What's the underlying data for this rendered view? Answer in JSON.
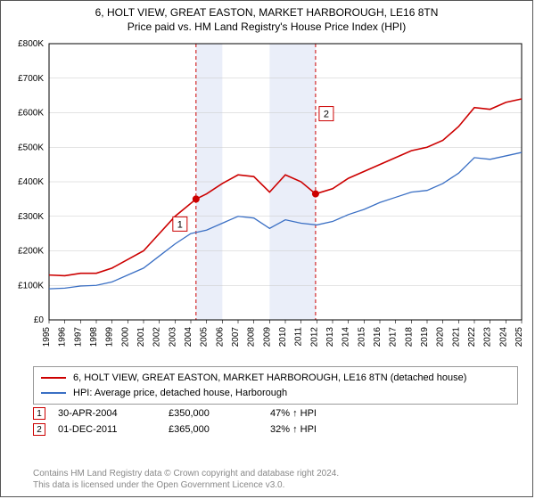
{
  "title_line1": "6, HOLT VIEW, GREAT EASTON, MARKET HARBOROUGH, LE16 8TN",
  "title_line2": "Price paid vs. HM Land Registry's House Price Index (HPI)",
  "chart": {
    "type": "line",
    "background_color": "#ffffff",
    "grid_color": "#c8c8c8",
    "axis_color": "#000000",
    "x_ticks": [
      "1995",
      "1996",
      "1997",
      "1998",
      "1999",
      "2000",
      "2001",
      "2002",
      "2003",
      "2004",
      "2005",
      "2006",
      "2007",
      "2008",
      "2009",
      "2010",
      "2011",
      "2012",
      "2013",
      "2014",
      "2015",
      "2016",
      "2017",
      "2018",
      "2019",
      "2020",
      "2021",
      "2022",
      "2023",
      "2024",
      "2025"
    ],
    "x_min": 1995,
    "x_max": 2025,
    "y_ticks": [
      "£0",
      "£100K",
      "£200K",
      "£300K",
      "£400K",
      "£500K",
      "£600K",
      "£700K",
      "£800K"
    ],
    "y_min": 0,
    "y_max": 800,
    "tick_fontsize": 10,
    "shaded_bands": [
      {
        "x_start": 2004.33,
        "x_end": 2006.0,
        "fill": "#eaeef9"
      },
      {
        "x_start": 2009.0,
        "x_end": 2011.92,
        "fill": "#eaeef9"
      }
    ],
    "vlines": [
      {
        "x": 2004.33,
        "color": "#cc0000",
        "dash": "4,3"
      },
      {
        "x": 2011.92,
        "color": "#cc0000",
        "dash": "4,3"
      }
    ],
    "series": [
      {
        "name": "property",
        "label": "6, HOLT VIEW, GREAT EASTON, MARKET HARBOROUGH, LE16 8TN (detached house)",
        "color": "#cc0000",
        "width": 1.6,
        "data": [
          [
            1995,
            130
          ],
          [
            1996,
            128
          ],
          [
            1997,
            135
          ],
          [
            1998,
            135
          ],
          [
            1999,
            150
          ],
          [
            2000,
            175
          ],
          [
            2001,
            200
          ],
          [
            2002,
            250
          ],
          [
            2003,
            300
          ],
          [
            2004.33,
            350
          ],
          [
            2005,
            365
          ],
          [
            2006,
            395
          ],
          [
            2007,
            420
          ],
          [
            2008,
            415
          ],
          [
            2009,
            370
          ],
          [
            2010,
            420
          ],
          [
            2011,
            400
          ],
          [
            2011.92,
            365
          ],
          [
            2013,
            380
          ],
          [
            2014,
            410
          ],
          [
            2015,
            430
          ],
          [
            2016,
            450
          ],
          [
            2017,
            470
          ],
          [
            2018,
            490
          ],
          [
            2019,
            500
          ],
          [
            2020,
            520
          ],
          [
            2021,
            560
          ],
          [
            2022,
            615
          ],
          [
            2023,
            610
          ],
          [
            2024,
            630
          ],
          [
            2025,
            640
          ]
        ]
      },
      {
        "name": "hpi",
        "label": "HPI: Average price, detached house, Harborough",
        "color": "#3a6fc4",
        "width": 1.3,
        "data": [
          [
            1995,
            90
          ],
          [
            1996,
            92
          ],
          [
            1997,
            98
          ],
          [
            1998,
            100
          ],
          [
            1999,
            110
          ],
          [
            2000,
            130
          ],
          [
            2001,
            150
          ],
          [
            2002,
            185
          ],
          [
            2003,
            220
          ],
          [
            2004,
            250
          ],
          [
            2005,
            260
          ],
          [
            2006,
            280
          ],
          [
            2007,
            300
          ],
          [
            2008,
            295
          ],
          [
            2009,
            265
          ],
          [
            2010,
            290
          ],
          [
            2011,
            280
          ],
          [
            2012,
            275
          ],
          [
            2013,
            285
          ],
          [
            2014,
            305
          ],
          [
            2015,
            320
          ],
          [
            2016,
            340
          ],
          [
            2017,
            355
          ],
          [
            2018,
            370
          ],
          [
            2019,
            375
          ],
          [
            2020,
            395
          ],
          [
            2021,
            425
          ],
          [
            2022,
            470
          ],
          [
            2023,
            465
          ],
          [
            2024,
            475
          ],
          [
            2025,
            485
          ]
        ]
      }
    ],
    "markers": [
      {
        "id": "1",
        "x": 2004.33,
        "y": 350,
        "color": "#cc0000",
        "label_offset": [
          -18,
          28
        ]
      },
      {
        "id": "2",
        "x": 2011.92,
        "y": 365,
        "color": "#cc0000",
        "label_offset": [
          12,
          -90
        ]
      }
    ]
  },
  "legend": {
    "rows": [
      {
        "color": "#cc0000",
        "label": "6, HOLT VIEW, GREAT EASTON, MARKET HARBOROUGH, LE16 8TN (detached house)"
      },
      {
        "color": "#3a6fc4",
        "label": "HPI: Average price, detached house, Harborough"
      }
    ]
  },
  "data_points": [
    {
      "id": "1",
      "color": "#cc0000",
      "date": "30-APR-2004",
      "price": "£350,000",
      "pct": "47% ↑ HPI"
    },
    {
      "id": "2",
      "color": "#cc0000",
      "date": "01-DEC-2011",
      "price": "£365,000",
      "pct": "32% ↑ HPI"
    }
  ],
  "footer_line1": "Contains HM Land Registry data © Crown copyright and database right 2024.",
  "footer_line2": "This data is licensed under the Open Government Licence v3.0."
}
